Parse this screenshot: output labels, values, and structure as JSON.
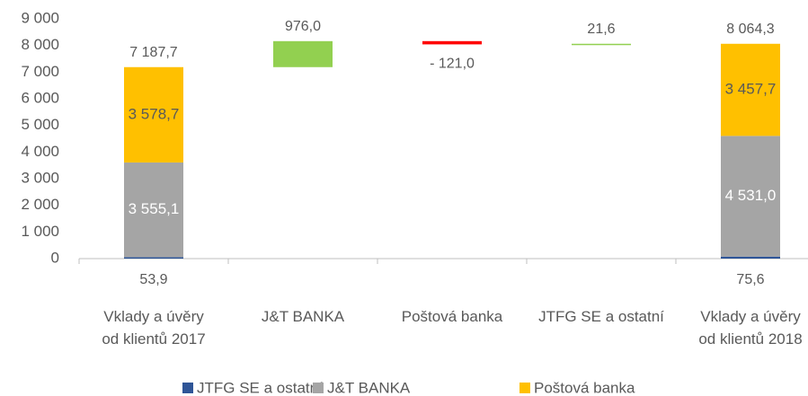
{
  "chart_data": {
    "type": "waterfall",
    "categories": [
      "Vklady a úvěry\nod klientů 2017",
      "J&T BANKA",
      "Poštová banka",
      "JTFG SE a ostatní",
      "Vklady a úvěry\nod klientů 2018"
    ],
    "series": [
      {
        "name": "JTFG SE a ostatní",
        "color": "#2f5597",
        "values": [
          53.9,
          null,
          null,
          null,
          75.6
        ],
        "value_labels": [
          "53,9",
          null,
          null,
          null,
          "75,6"
        ]
      },
      {
        "name": "J&T BANKA",
        "color": "#a5a5a5",
        "values": [
          3555.1,
          null,
          null,
          null,
          4531.0
        ],
        "value_labels": [
          "3 555,1",
          null,
          null,
          null,
          "4 531,0"
        ]
      },
      {
        "name": "Poštová banka",
        "color": "#ffc000",
        "values": [
          3578.7,
          null,
          null,
          null,
          3457.7
        ],
        "value_labels": [
          "3 578,7",
          null,
          null,
          null,
          "3 457,7"
        ]
      }
    ],
    "totals": {
      "values": [
        7187.7,
        null,
        null,
        null,
        8064.3
      ],
      "value_labels": [
        "7 187,7",
        null,
        null,
        null,
        "8 064,3"
      ]
    },
    "changes": {
      "values": [
        null,
        976.0,
        -121.0,
        21.6,
        null
      ],
      "value_labels": [
        null,
        "976,0",
        "- 121,0",
        "21,6",
        null
      ],
      "increase_color": "#92d050",
      "decrease_color": "#ff0000"
    },
    "ylim": [
      0,
      9000
    ],
    "yticks": [
      0,
      {
        "value": 1000,
        "label": "1 000"
      },
      {
        "value": 2000,
        "label": "2 000"
      },
      {
        "value": 3000,
        "label": "3 000"
      },
      {
        "value": 4000,
        "label": "4 000"
      },
      {
        "value": 5000,
        "label": "5 000"
      },
      {
        "value": 6000,
        "label": "6 000"
      },
      {
        "value": 7000,
        "label": "7 000"
      },
      {
        "value": 8000,
        "label": "8 000"
      },
      {
        "value": 9000,
        "label": "9 000"
      }
    ],
    "grid": false
  }
}
